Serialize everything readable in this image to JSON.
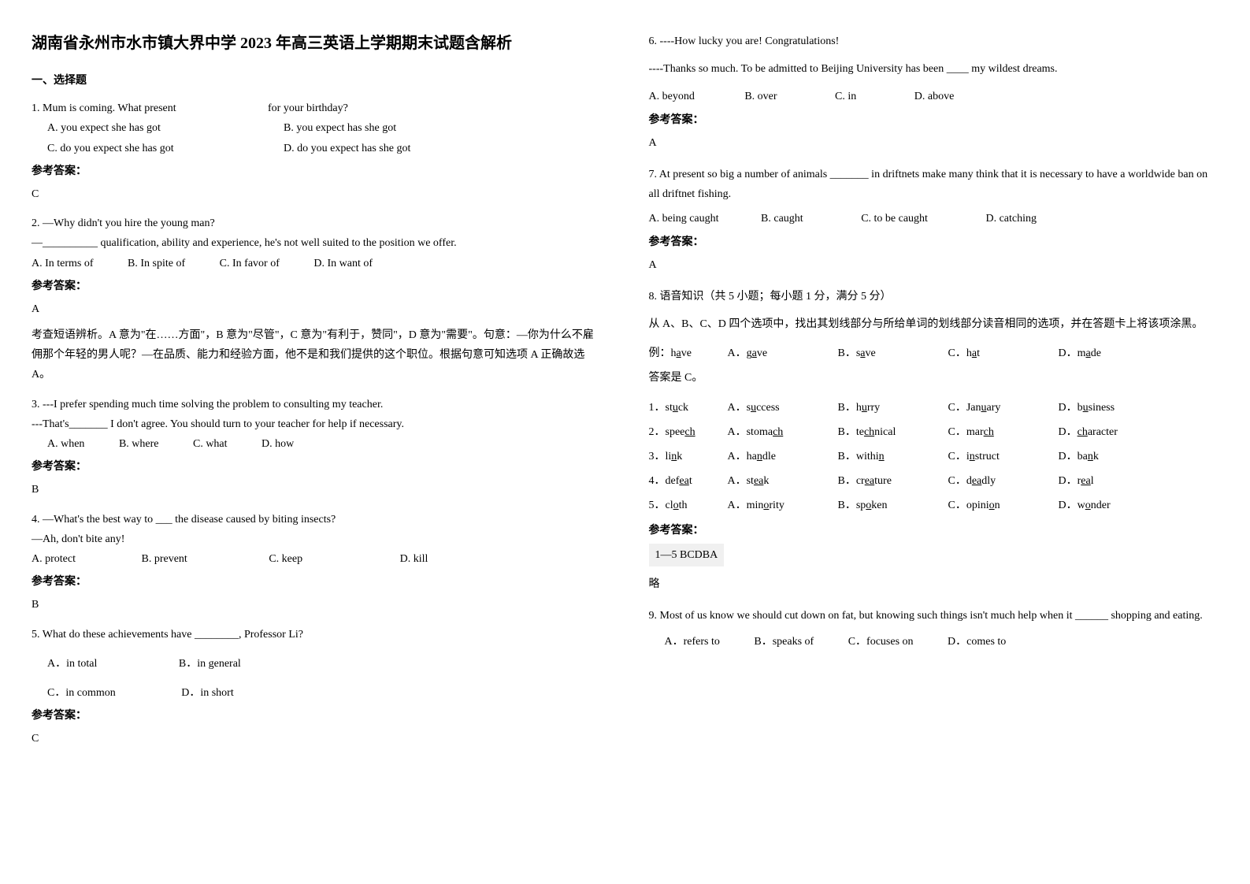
{
  "title": "湖南省永州市水市镇大界中学 2023 年高三英语上学期期末试题含解析",
  "section1_heading": "一、选择题",
  "q1": {
    "stem1": "1. Mum is coming. What present",
    "stem2": "for your birthday?",
    "optA": "A. you expect she has got",
    "optB": "B. you expect has she got",
    "optC": "C. do you expect she has got",
    "optD": "D. do you expect has she got",
    "answer_label": "参考答案：",
    "answer": "C"
  },
  "q2": {
    "line1": "2. —Why didn't you hire the young man?",
    "line2": "—__________ qualification, ability and experience, he's not well suited to the position we offer.",
    "optA": "A. In terms of",
    "optB": "B. In spite of",
    "optC": "C. In favor of",
    "optD": "D. In want of",
    "answer_label": "参考答案：",
    "answer": "A",
    "explanation": "考查短语辨析。A 意为\"在……方面\"，B 意为\"尽管\"，C 意为\"有利于，赞同\"，D 意为\"需要\"。句意：—你为什么不雇佣那个年轻的男人呢？—在品质、能力和经验方面，他不是和我们提供的这个职位。根据句意可知选项 A 正确故选 A。"
  },
  "q3": {
    "line1": "3. ---I prefer spending much time solving the problem to consulting my teacher.",
    "line2": "---That's_______ I don't agree. You should turn to your teacher for help if necessary.",
    "optA": "A. when",
    "optB": "B. where",
    "optC": "C. what",
    "optD": "D. how",
    "answer_label": "参考答案：",
    "answer": "B"
  },
  "q4": {
    "line1": "4. —What's the best way to ___ the disease caused by biting insects?",
    "line2": "—Ah, don't bite any!",
    "optA": "A. protect",
    "optB": "B. prevent",
    "optC": "C. keep",
    "optD": "D. kill",
    "answer_label": "参考答案：",
    "answer": "B"
  },
  "q5": {
    "stem": "5. What do these achievements have ________,  Professor Li?",
    "optA": "A．in total",
    "optB": "B．in general",
    "optC": "C．in common",
    "optD": "D．in short",
    "answer_label": "参考答案：",
    "answer": "C"
  },
  "q6": {
    "line1": "6. ----How lucky you are! Congratulations!",
    "line2": "----Thanks so much. To be admitted to Beijing University has been ____ my wildest dreams.",
    "optA": "A. beyond",
    "optB": "B. over",
    "optC": "C. in",
    "optD": "D. above",
    "answer_label": "参考答案：",
    "answer": "A"
  },
  "q7": {
    "stem": " 7. At present so big a number of animals _______ in driftnets make many think that it is necessary to have a worldwide ban on all driftnet fishing.",
    "optA": "A. being caught",
    "optB": "B. caught",
    "optC": "C. to be caught",
    "optD": "D. catching",
    "answer_label": "参考答案：",
    "answer": "A"
  },
  "q8": {
    "heading": "8. 语音知识（共 5 小题；每小题 1 分，满分 5 分）",
    "instruction": "从 A、B、C、D 四个选项中，找出其划线部分与所给单词的划线部分读音相同的选项，并在答题卡上将该项涂黑。",
    "example_label": "例：h",
    "example_word_u": "a",
    "example_word_end": "ve",
    "example_A": "A．g",
    "example_A_u": "a",
    "example_A_end": "ve",
    "example_B": "B．s",
    "example_B_u": "a",
    "example_B_end": "ve",
    "example_C": "C．h",
    "example_C_u": "a",
    "example_C_end": "t",
    "example_D": "D．m",
    "example_D_u": "a",
    "example_D_end": "de",
    "example_answer": "答案是 C。",
    "rows": [
      {
        "n": "1．",
        "w1": "st",
        "wu": "u",
        "w2": "ck",
        "A1": "A．s",
        "Au": "u",
        "A2": "ccess",
        "B1": "B．h",
        "Bu": "u",
        "B2": "rry",
        "C1": "C．Jan",
        "Cu": "u",
        "C2": "ary",
        "D1": "D．b",
        "Du": "u",
        "D2": "siness"
      },
      {
        "n": "2．",
        "w1": "spee",
        "wu": "ch",
        "w2": "",
        "A1": "A．stoma",
        "Au": "ch",
        "A2": "",
        "B1": "B．te",
        "Bu": "ch",
        "B2": "nical",
        "C1": "C．mar",
        "Cu": "ch",
        "C2": "",
        "D1": "D．",
        "Du": "ch",
        "D2": "aracter"
      },
      {
        "n": "3．",
        "w1": "li",
        "wu": "n",
        "w2": "k",
        "A1": "A．ha",
        "Au": "n",
        "A2": "dle",
        "B1": "B．withi",
        "Bu": "n",
        "B2": "",
        "C1": "C．i",
        "Cu": "n",
        "C2": "struct",
        "D1": "D．ba",
        "Du": "n",
        "D2": "k"
      },
      {
        "n": "4．",
        "w1": "def",
        "wu": "ea",
        "w2": "t",
        "A1": "A．st",
        "Au": "ea",
        "A2": "k",
        "B1": "B．cr",
        "Bu": "ea",
        "B2": "ture",
        "C1": "C．d",
        "Cu": "ea",
        "C2": "dly",
        "D1": "D．r",
        "Du": "ea",
        "D2": "l"
      },
      {
        "n": "5．",
        "w1": "cl",
        "wu": "o",
        "w2": "th",
        "A1": "A．min",
        "Au": "o",
        "A2": "rity",
        "B1": "B．sp",
        "Bu": "o",
        "B2": "ken",
        "C1": "C．opini",
        "Cu": "o",
        "C2": "n",
        "D1": "D．w",
        "Du": "o",
        "D2": "nder"
      }
    ],
    "answer_label": "参考答案：",
    "answer_box": "1—5  BCDBA",
    "note": "略"
  },
  "q9": {
    "stem": "9. Most of us know we should cut down on fat, but knowing such things isn't much help when it ______ shopping and eating.",
    "optA": "A．refers to",
    "optB": "B．speaks of",
    "optC": "C．focuses on",
    "optD": "D．comes to"
  }
}
